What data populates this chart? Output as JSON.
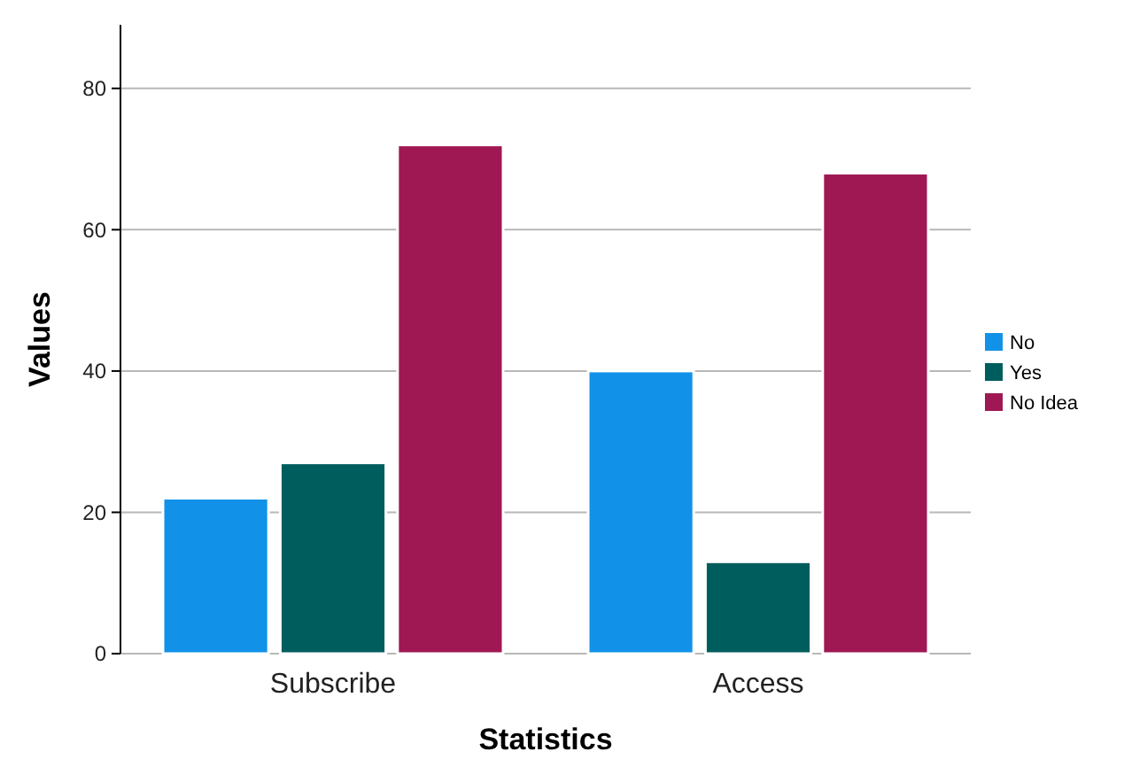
{
  "chart_data": {
    "type": "bar",
    "xlabel": "Statistics",
    "ylabel": "Values",
    "categories": [
      "Subscribe",
      "Access"
    ],
    "series": [
      {
        "name": "No",
        "color": "#1192e8",
        "values": [
          22,
          40
        ]
      },
      {
        "name": "Yes",
        "color": "#005d5d",
        "values": [
          27,
          13
        ]
      },
      {
        "name": "No Idea",
        "color": "#9f1853",
        "values": [
          72,
          68
        ]
      }
    ],
    "ylim": [
      0,
      89
    ],
    "yticks": [
      0,
      20,
      40,
      60,
      80
    ],
    "grid": "y",
    "legend": "right"
  }
}
